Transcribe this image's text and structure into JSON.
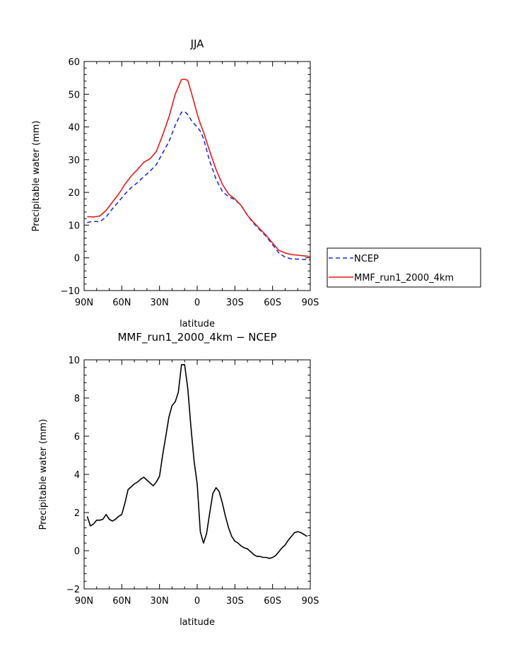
{
  "chart_data": [
    {
      "type": "line",
      "title": "JJA",
      "xlabel": "latitude",
      "ylabel": "Precipitable water (mm)",
      "xlim": [
        90,
        -90
      ],
      "ylim": [
        -10,
        60
      ],
      "xticks": [
        90,
        60,
        30,
        0,
        -30,
        -60,
        -90
      ],
      "xtick_labels": [
        "90N",
        "60N",
        "30N",
        "0",
        "30S",
        "60S",
        "90S"
      ],
      "yticks": [
        -10,
        0,
        10,
        20,
        30,
        40,
        50,
        60
      ],
      "ytick_labels": [
        "−10",
        "0",
        "10",
        "20",
        "30",
        "40",
        "50",
        "60"
      ],
      "legend": "outside-right",
      "series": [
        {
          "name": "NCEP",
          "color": "#1f2fd6",
          "dash": "dashed",
          "x": [
            87.5,
            82.5,
            77.5,
            72.5,
            67.5,
            62.5,
            57.5,
            52.5,
            47.5,
            42.5,
            37.5,
            32.5,
            27.5,
            22.5,
            17.5,
            12.5,
            10,
            7.5,
            5,
            2.5,
            0,
            -2.5,
            -5,
            -7.5,
            -10,
            -15,
            -20,
            -25,
            -30,
            -35,
            -40,
            -45,
            -50,
            -55,
            -60,
            -65,
            -70,
            -75,
            -80,
            -85,
            -90
          ],
          "y": [
            10.8,
            11.2,
            11.0,
            12.5,
            15.0,
            17.2,
            19.5,
            21.5,
            23.0,
            24.8,
            26.5,
            28.5,
            32.0,
            35.5,
            40.5,
            44.5,
            44.7,
            43.8,
            42.2,
            41.0,
            40.0,
            38.7,
            36.5,
            33.0,
            29.5,
            24.0,
            20.3,
            18.7,
            17.8,
            16.0,
            13.0,
            10.5,
            8.5,
            6.5,
            4.0,
            1.5,
            0.2,
            -0.3,
            -0.4,
            -0.5,
            -0.6
          ]
        },
        {
          "name": "MMF_run1_2000_4km",
          "color": "#e41a1c",
          "dash": "solid",
          "x": [
            87.5,
            82.5,
            77.5,
            72.5,
            67.5,
            62.5,
            57.5,
            52.5,
            47.5,
            42.5,
            37.5,
            32.5,
            27.5,
            22.5,
            17.5,
            12.5,
            10,
            7.5,
            5,
            2.5,
            0,
            -2.5,
            -5,
            -7.5,
            -10,
            -15,
            -20,
            -25,
            -30,
            -35,
            -40,
            -45,
            -50,
            -55,
            -60,
            -65,
            -70,
            -75,
            -80,
            -85,
            -90
          ],
          "y": [
            12.6,
            12.5,
            12.8,
            14.5,
            17.0,
            19.5,
            22.5,
            25.0,
            27.0,
            29.2,
            30.3,
            32.5,
            37.5,
            43.0,
            50.0,
            54.5,
            54.6,
            54.2,
            51.0,
            47.5,
            44.0,
            41.0,
            38.5,
            35.5,
            32.5,
            27.0,
            22.5,
            19.5,
            18.0,
            16.0,
            13.0,
            10.8,
            8.8,
            6.8,
            4.5,
            2.3,
            1.5,
            1.0,
            0.8,
            0.6,
            0.4
          ]
        }
      ]
    },
    {
      "type": "line",
      "title": "MMF_run1_2000_4km − NCEP",
      "xlabel": "latitude",
      "ylabel": "Precipitable water (mm)",
      "xlim": [
        90,
        -90
      ],
      "ylim": [
        -2,
        10
      ],
      "xticks": [
        90,
        60,
        30,
        0,
        -30,
        -60,
        -90
      ],
      "xtick_labels": [
        "90N",
        "60N",
        "30N",
        "0",
        "30S",
        "60S",
        "90S"
      ],
      "yticks": [
        -2,
        0,
        2,
        4,
        6,
        8,
        10
      ],
      "ytick_labels": [
        "−2",
        "0",
        "2",
        "4",
        "6",
        "8",
        "10"
      ],
      "series": [
        {
          "name": "MMF_run1_2000_4km - NCEP",
          "color": "#000000",
          "dash": "solid",
          "x": [
            87.5,
            85,
            82.5,
            80,
            77.5,
            75,
            72.5,
            70,
            67.5,
            65,
            62.5,
            60,
            57.5,
            55,
            52.5,
            50,
            47.5,
            45,
            42.5,
            40,
            37.5,
            35,
            32.5,
            30,
            27.5,
            25,
            22.5,
            20,
            17.5,
            15,
            12.5,
            10,
            7.5,
            5,
            2.5,
            0,
            -2.5,
            -5,
            -7.5,
            -10,
            -12.5,
            -15,
            -17.5,
            -20,
            -22.5,
            -25,
            -27.5,
            -30,
            -32.5,
            -35,
            -37.5,
            -40,
            -42.5,
            -45,
            -47.5,
            -50,
            -52.5,
            -55,
            -57.5,
            -60,
            -62.5,
            -65,
            -67.5,
            -70,
            -72.5,
            -75,
            -77.5,
            -80,
            -82.5,
            -85,
            -87.5
          ],
          "y": [
            1.8,
            1.3,
            1.4,
            1.6,
            1.6,
            1.65,
            1.9,
            1.65,
            1.55,
            1.65,
            1.8,
            1.9,
            2.5,
            3.2,
            3.35,
            3.5,
            3.6,
            3.75,
            3.85,
            3.7,
            3.55,
            3.4,
            3.6,
            3.9,
            5.0,
            6.0,
            7.0,
            7.6,
            7.8,
            8.3,
            9.75,
            9.75,
            8.5,
            6.5,
            4.7,
            3.5,
            1.0,
            0.4,
            0.9,
            2.0,
            3.0,
            3.3,
            3.1,
            2.5,
            1.8,
            1.2,
            0.75,
            0.5,
            0.4,
            0.25,
            0.15,
            0.1,
            -0.05,
            -0.2,
            -0.3,
            -0.3,
            -0.35,
            -0.35,
            -0.4,
            -0.35,
            -0.25,
            -0.05,
            0.15,
            0.3,
            0.55,
            0.75,
            0.95,
            1.0,
            0.95,
            0.85,
            0.75
          ]
        }
      ]
    }
  ]
}
